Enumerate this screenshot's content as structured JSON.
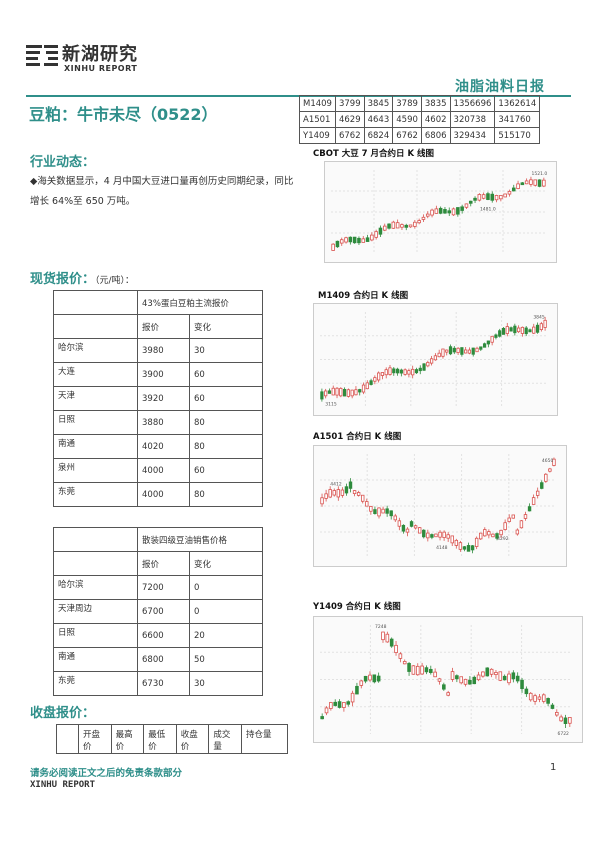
{
  "header": {
    "logo_cn": "新湖研究",
    "logo_en": "XINHU REPORT",
    "report_type": "油脂油料日报"
  },
  "title": "豆粕：牛市未尽（0522）",
  "news": {
    "heading": "行业动态：",
    "text": "◆海关数据显示，4 月中国大豆进口量再创历史同期纪录，同比增长 64%至 650 万吨。"
  },
  "spot": {
    "heading": "现货报价：",
    "unit": "（元/吨）：",
    "table1": {
      "caption": "43%蛋白豆粕主流报价",
      "col_price": "报价",
      "col_change": "变化",
      "rows": [
        {
          "city": "哈尔滨",
          "price": "3980",
          "change": "30"
        },
        {
          "city": "大连",
          "price": "3900",
          "change": "60"
        },
        {
          "city": "天津",
          "price": "3920",
          "change": "60"
        },
        {
          "city": "日照",
          "price": "3880",
          "change": "80"
        },
        {
          "city": "南通",
          "price": "4020",
          "change": "80"
        },
        {
          "city": "泉州",
          "price": "4000",
          "change": "60"
        },
        {
          "city": "东莞",
          "price": "4000",
          "change": "80"
        }
      ]
    },
    "table2": {
      "caption": "散装四级豆油销售价格",
      "col_price": "报价",
      "col_change": "变化",
      "rows": [
        {
          "city": "哈尔滨",
          "price": "7200",
          "change": "0"
        },
        {
          "city": "天津周边",
          "price": "6700",
          "change": "0"
        },
        {
          "city": "日照",
          "price": "6600",
          "change": "20"
        },
        {
          "city": "南通",
          "price": "6800",
          "change": "50"
        },
        {
          "city": "东莞",
          "price": "6730",
          "change": "30"
        }
      ]
    }
  },
  "close": {
    "heading": "收盘报价：",
    "headers": [
      "开盘价",
      "最高价",
      "最低价",
      "收盘价",
      "成交量",
      "持仓量"
    ]
  },
  "quotes": [
    [
      "M1409",
      "3799",
      "3845",
      "3789",
      "3835",
      "1356696",
      "1362614"
    ],
    [
      "A1501",
      "4629",
      "4643",
      "4590",
      "4602",
      "320738",
      "341760"
    ],
    [
      "Y1409",
      "6762",
      "6824",
      "6762",
      "6806",
      "329434",
      "515170"
    ]
  ],
  "charts": {
    "cbot": {
      "title": "CBOT 大豆 7 月合约日 K 线图",
      "hi": "1521.0",
      "lo": "1481.0"
    },
    "m1409": {
      "title": "M1409 合约日 K 线图",
      "hi": "3845",
      "lo": "3115"
    },
    "a1501": {
      "title": "A1501 合约日 K 线图",
      "hi": "4650",
      "mid1": "4412",
      "mid2": "4292",
      "lo": "4148"
    },
    "y1409": {
      "title": "Y1409 合约日 K 线图",
      "hi": "7248",
      "lo": "6722"
    }
  },
  "footer": {
    "disclaimer": "请务必阅读正文之后的免责条款部分",
    "brand": "XINHU REPORT",
    "page": "1"
  },
  "colors": {
    "accent": "#2f8f8a",
    "up": "#d9534f",
    "down": "#2e8b3d"
  }
}
